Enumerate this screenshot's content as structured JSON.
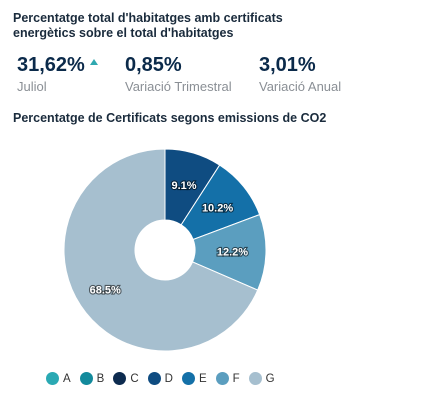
{
  "header": {
    "title": "Percentatge total d'habitatges amb certificats energètics sobre el total d'habitatges"
  },
  "kpis": [
    {
      "value": "31,62%",
      "label": "Juliol",
      "trend": "up",
      "trend_color": "#2fa8b0"
    },
    {
      "value": "0,85%",
      "label": "Variació Trimestral"
    },
    {
      "value": "3,01%",
      "label": "Variació Anual"
    }
  ],
  "chart_data": {
    "type": "pie",
    "donut": true,
    "title": "Percentatge de Certificats segons emissions de CO2",
    "categories": [
      "A",
      "B",
      "C",
      "D",
      "E",
      "F",
      "G"
    ],
    "values": [
      0,
      0,
      0,
      9.1,
      10.2,
      12.2,
      68.5
    ],
    "slice_labels": [
      "",
      "",
      "",
      "9.1%",
      "10.2%",
      "12.2%",
      "68.5%"
    ],
    "colors": [
      "#2aa9b3",
      "#138a9c",
      "#0d2b4f",
      "#0f4c81",
      "#1470a8",
      "#5b9ebf",
      "#a6bfcf"
    ],
    "legend_position": "bottom-left"
  }
}
